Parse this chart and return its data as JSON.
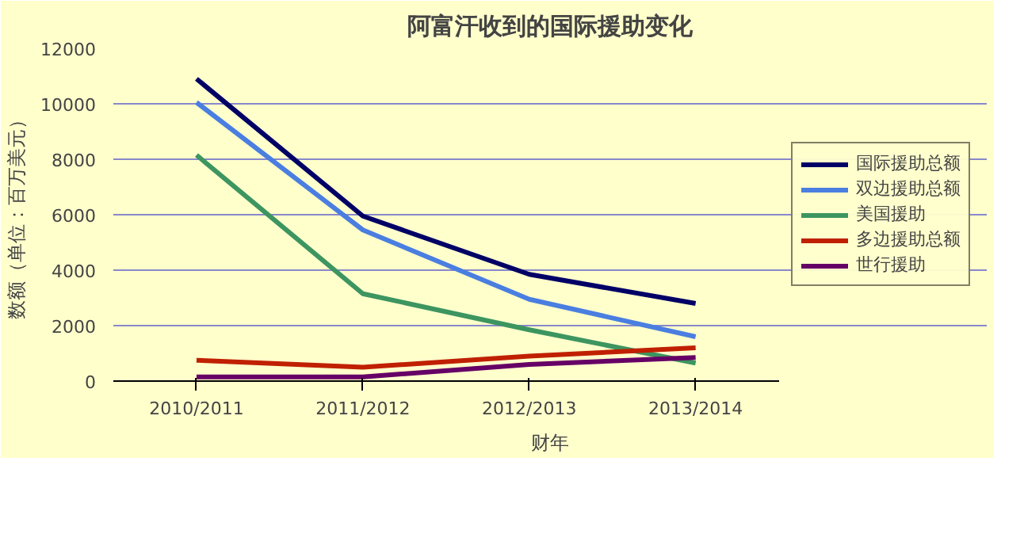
{
  "chart_data": {
    "type": "line",
    "title": "阿富汗收到的国际援助变化",
    "xlabel": "财年",
    "ylabel": "数额（单位：百万美元）",
    "categories": [
      "2010/2011",
      "2011/2012",
      "2012/2013",
      "2013/2014"
    ],
    "ylim": [
      0,
      12000
    ],
    "yticks": [
      0,
      2000,
      4000,
      6000,
      8000,
      10000,
      12000
    ],
    "grid": "y",
    "legend": "right",
    "marker": "none",
    "series": [
      {
        "name": "国际援助总额",
        "color": "#000066",
        "values": [
          10900,
          5950,
          3850,
          2800
        ]
      },
      {
        "name": "双边援助总额",
        "color": "#4a7ee0",
        "values": [
          10050,
          5450,
          2950,
          1600
        ]
      },
      {
        "name": "美国援助",
        "color": "#3d9560",
        "values": [
          8150,
          3150,
          1850,
          650
        ]
      },
      {
        "name": "多边援助总额",
        "color": "#c02000",
        "values": [
          750,
          500,
          900,
          1200
        ]
      },
      {
        "name": "世行援助",
        "color": "#660066",
        "values": [
          150,
          150,
          600,
          850
        ]
      }
    ]
  }
}
